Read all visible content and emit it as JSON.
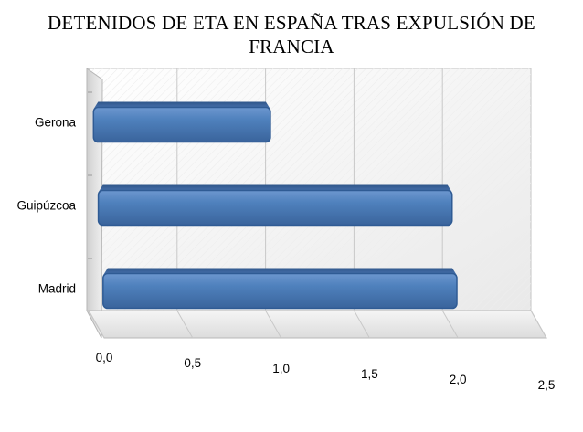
{
  "chart_data": {
    "type": "bar",
    "orientation": "horizontal",
    "title_lines": [
      "DETENIDOS DE ETA EN ESPAÑA TRAS EXPULSIÓN DE",
      "FRANCIA"
    ],
    "categories": [
      "Gerona",
      "Guipúzcoa",
      "Madrid"
    ],
    "values": [
      1,
      2,
      2
    ],
    "xlim": [
      0,
      2.5
    ],
    "x_ticks": [
      "0,0",
      "0,5",
      "1,0",
      "1,5",
      "2,0",
      "2,5"
    ],
    "grid": true,
    "legend": "none",
    "bar_color": "#4f81bd",
    "style": "3d"
  }
}
